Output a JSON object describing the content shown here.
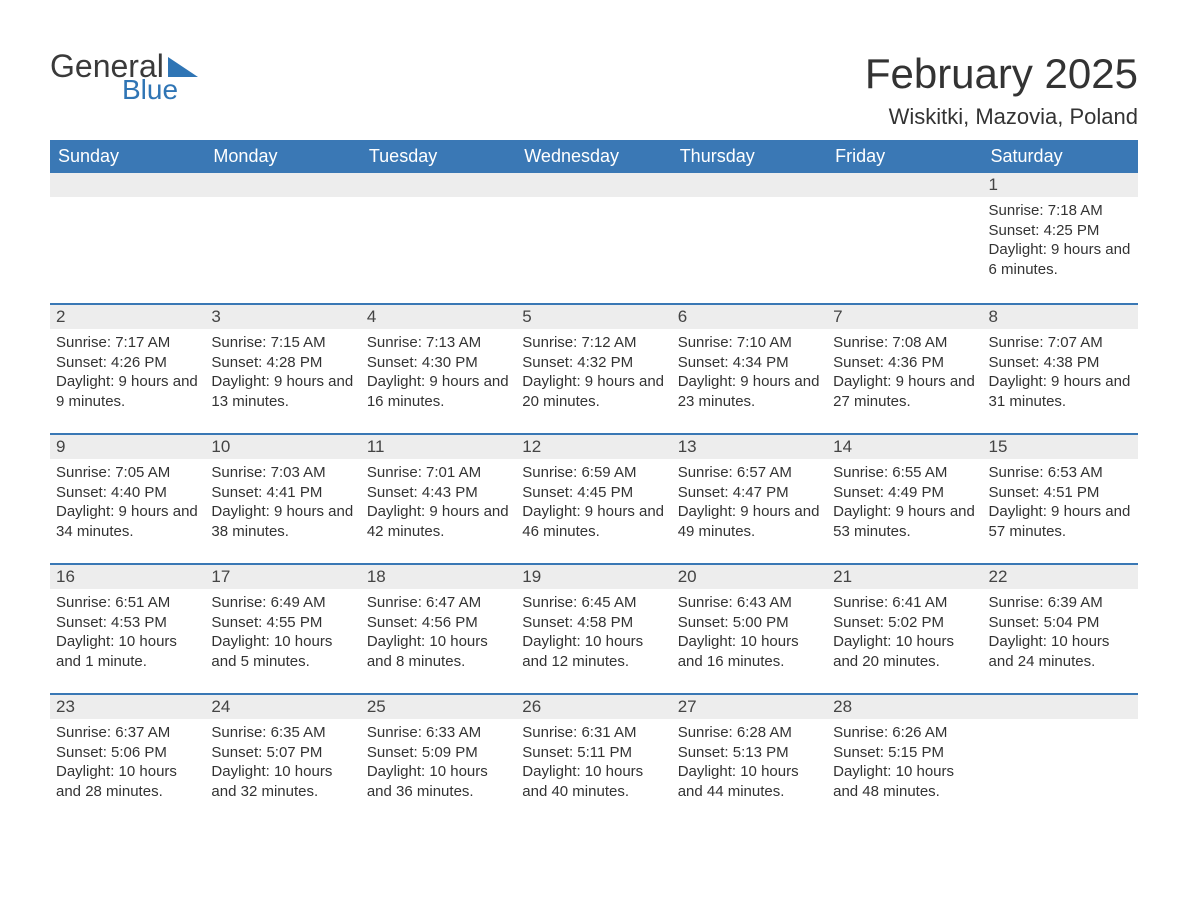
{
  "logo": {
    "text_general": "General",
    "text_blue": "Blue",
    "shape_color": "#2f75b5"
  },
  "header": {
    "month_title": "February 2025",
    "location": "Wiskitki, Mazovia, Poland"
  },
  "colors": {
    "header_bg": "#3a78b5",
    "header_text": "#ffffff",
    "daynum_bg": "#ededed",
    "border_top": "#3a78b5",
    "page_bg": "#ffffff",
    "body_text": "#333333"
  },
  "weekday_labels": [
    "Sunday",
    "Monday",
    "Tuesday",
    "Wednesday",
    "Thursday",
    "Friday",
    "Saturday"
  ],
  "field_labels": {
    "sunrise": "Sunrise",
    "sunset": "Sunset",
    "daylight": "Daylight"
  },
  "weeks": [
    [
      null,
      null,
      null,
      null,
      null,
      null,
      {
        "day": "1",
        "sunrise": "7:18 AM",
        "sunset": "4:25 PM",
        "daylight": "9 hours and 6 minutes."
      }
    ],
    [
      {
        "day": "2",
        "sunrise": "7:17 AM",
        "sunset": "4:26 PM",
        "daylight": "9 hours and 9 minutes."
      },
      {
        "day": "3",
        "sunrise": "7:15 AM",
        "sunset": "4:28 PM",
        "daylight": "9 hours and 13 minutes."
      },
      {
        "day": "4",
        "sunrise": "7:13 AM",
        "sunset": "4:30 PM",
        "daylight": "9 hours and 16 minutes."
      },
      {
        "day": "5",
        "sunrise": "7:12 AM",
        "sunset": "4:32 PM",
        "daylight": "9 hours and 20 minutes."
      },
      {
        "day": "6",
        "sunrise": "7:10 AM",
        "sunset": "4:34 PM",
        "daylight": "9 hours and 23 minutes."
      },
      {
        "day": "7",
        "sunrise": "7:08 AM",
        "sunset": "4:36 PM",
        "daylight": "9 hours and 27 minutes."
      },
      {
        "day": "8",
        "sunrise": "7:07 AM",
        "sunset": "4:38 PM",
        "daylight": "9 hours and 31 minutes."
      }
    ],
    [
      {
        "day": "9",
        "sunrise": "7:05 AM",
        "sunset": "4:40 PM",
        "daylight": "9 hours and 34 minutes."
      },
      {
        "day": "10",
        "sunrise": "7:03 AM",
        "sunset": "4:41 PM",
        "daylight": "9 hours and 38 minutes."
      },
      {
        "day": "11",
        "sunrise": "7:01 AM",
        "sunset": "4:43 PM",
        "daylight": "9 hours and 42 minutes."
      },
      {
        "day": "12",
        "sunrise": "6:59 AM",
        "sunset": "4:45 PM",
        "daylight": "9 hours and 46 minutes."
      },
      {
        "day": "13",
        "sunrise": "6:57 AM",
        "sunset": "4:47 PM",
        "daylight": "9 hours and 49 minutes."
      },
      {
        "day": "14",
        "sunrise": "6:55 AM",
        "sunset": "4:49 PM",
        "daylight": "9 hours and 53 minutes."
      },
      {
        "day": "15",
        "sunrise": "6:53 AM",
        "sunset": "4:51 PM",
        "daylight": "9 hours and 57 minutes."
      }
    ],
    [
      {
        "day": "16",
        "sunrise": "6:51 AM",
        "sunset": "4:53 PM",
        "daylight": "10 hours and 1 minute."
      },
      {
        "day": "17",
        "sunrise": "6:49 AM",
        "sunset": "4:55 PM",
        "daylight": "10 hours and 5 minutes."
      },
      {
        "day": "18",
        "sunrise": "6:47 AM",
        "sunset": "4:56 PM",
        "daylight": "10 hours and 8 minutes."
      },
      {
        "day": "19",
        "sunrise": "6:45 AM",
        "sunset": "4:58 PM",
        "daylight": "10 hours and 12 minutes."
      },
      {
        "day": "20",
        "sunrise": "6:43 AM",
        "sunset": "5:00 PM",
        "daylight": "10 hours and 16 minutes."
      },
      {
        "day": "21",
        "sunrise": "6:41 AM",
        "sunset": "5:02 PM",
        "daylight": "10 hours and 20 minutes."
      },
      {
        "day": "22",
        "sunrise": "6:39 AM",
        "sunset": "5:04 PM",
        "daylight": "10 hours and 24 minutes."
      }
    ],
    [
      {
        "day": "23",
        "sunrise": "6:37 AM",
        "sunset": "5:06 PM",
        "daylight": "10 hours and 28 minutes."
      },
      {
        "day": "24",
        "sunrise": "6:35 AM",
        "sunset": "5:07 PM",
        "daylight": "10 hours and 32 minutes."
      },
      {
        "day": "25",
        "sunrise": "6:33 AM",
        "sunset": "5:09 PM",
        "daylight": "10 hours and 36 minutes."
      },
      {
        "day": "26",
        "sunrise": "6:31 AM",
        "sunset": "5:11 PM",
        "daylight": "10 hours and 40 minutes."
      },
      {
        "day": "27",
        "sunrise": "6:28 AM",
        "sunset": "5:13 PM",
        "daylight": "10 hours and 44 minutes."
      },
      {
        "day": "28",
        "sunrise": "6:26 AM",
        "sunset": "5:15 PM",
        "daylight": "10 hours and 48 minutes."
      },
      null
    ]
  ]
}
